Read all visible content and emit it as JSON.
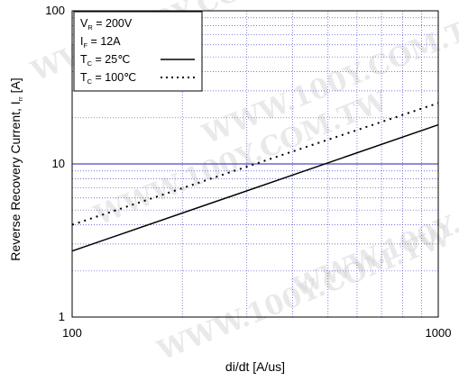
{
  "chart_data": {
    "type": "line",
    "x_scale": "log",
    "y_scale": "log",
    "xlim": [
      100,
      1000
    ],
    "ylim": [
      1,
      100
    ],
    "xlabel": "di/dt  [A/us]",
    "ylabel": "Reverse Recovery Current, I",
    "ylabel_subscript": "rr",
    "ylabel_unit": " [A]",
    "x_ticks": [
      {
        "value": 100,
        "label": "100"
      },
      {
        "value": 1000,
        "label": "1000"
      }
    ],
    "y_ticks": [
      {
        "value": 1,
        "label": "1"
      },
      {
        "value": 10,
        "label": "10"
      },
      {
        "value": 100,
        "label": "100"
      }
    ],
    "grid": true,
    "grid_color": "#4a4acd",
    "highlight_gridline_y": 10,
    "legend": {
      "placement": "top-left",
      "lines": [
        {
          "main": "V",
          "sub": "R",
          "rest": " = 200V"
        },
        {
          "main": "I",
          "sub": "F",
          "rest": " = 12A"
        },
        {
          "main": "T",
          "sub": "C",
          "rest": " =   25℃",
          "style": "solid"
        },
        {
          "main": "T",
          "sub": "C",
          "rest": " = 100℃",
          "style": "dotted"
        }
      ]
    },
    "series": [
      {
        "style": "solid",
        "color": "#000000",
        "x": [
          100,
          1000
        ],
        "y": [
          2.7,
          18.0
        ]
      },
      {
        "style": "dotted",
        "color": "#000000",
        "x": [
          100,
          1000
        ],
        "y": [
          4.0,
          25.0
        ]
      }
    ],
    "watermark": "WWW.100Y.COM.TW"
  }
}
